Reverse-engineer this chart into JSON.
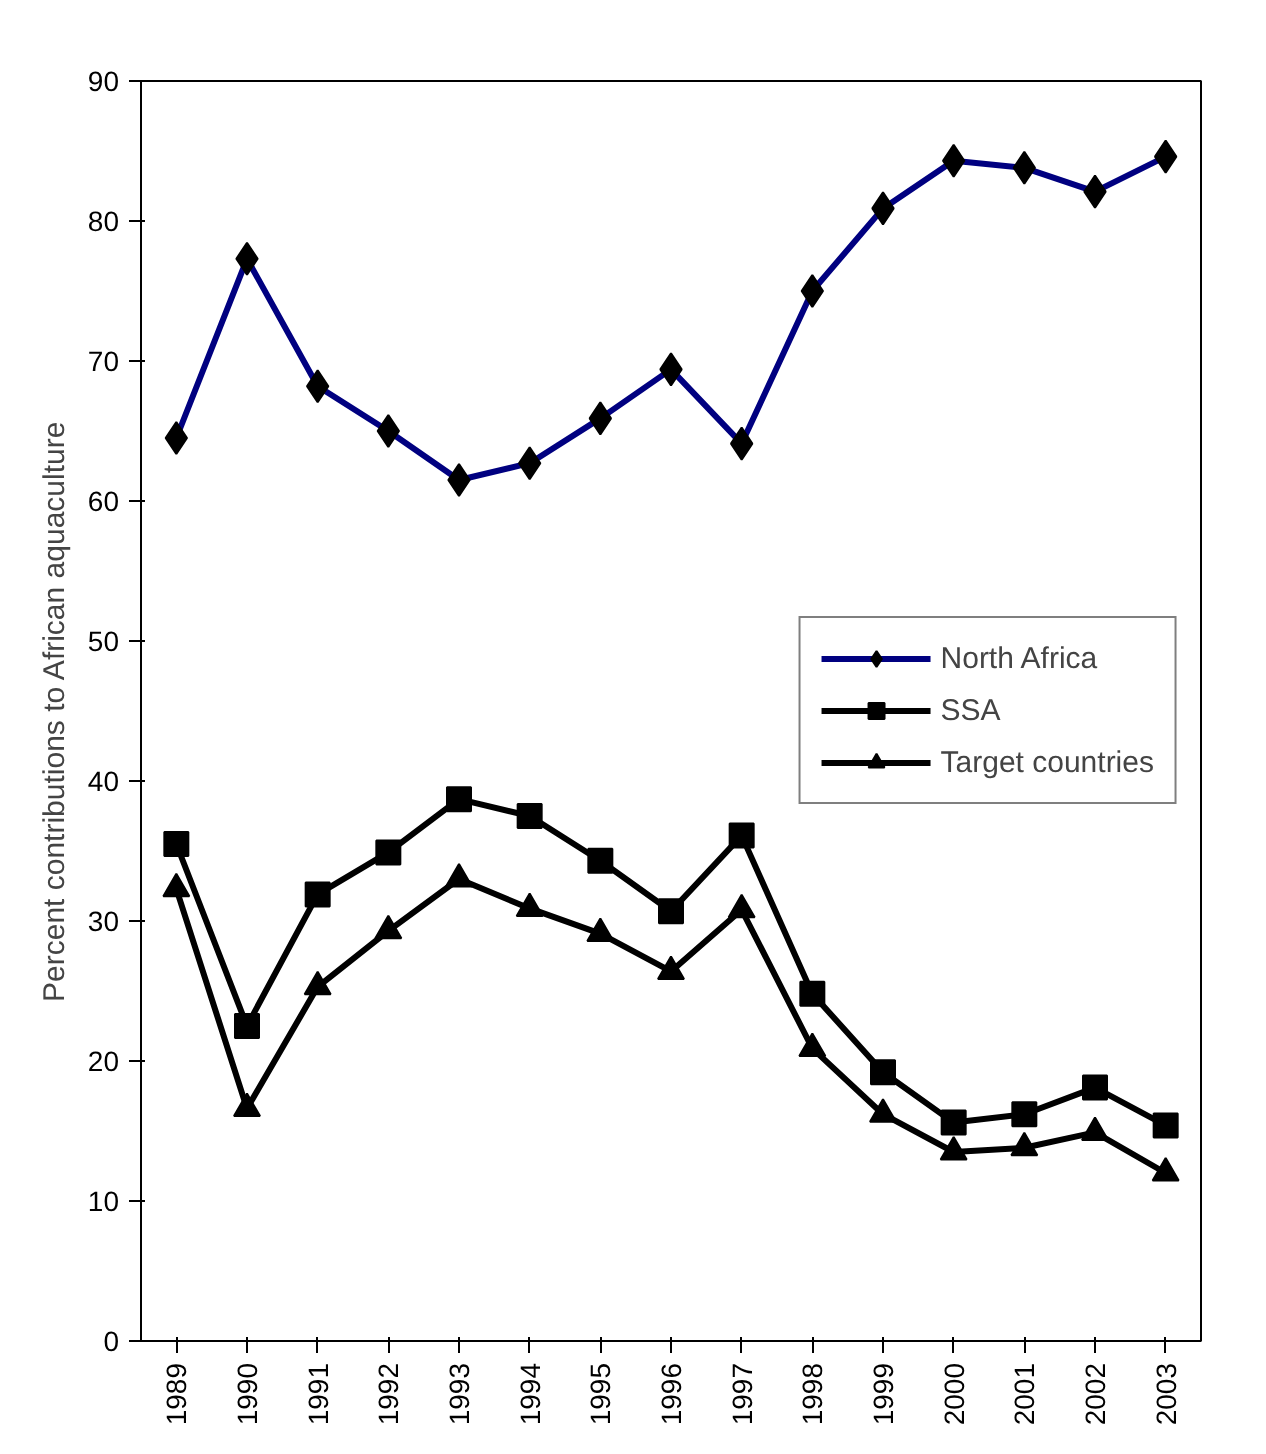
{
  "chart_data": {
    "type": "line",
    "ylabel": "Percent contributions to African aquaculture",
    "categories": [
      "1989",
      "1990",
      "1991",
      "1992",
      "1993",
      "1994",
      "1995",
      "1996",
      "1997",
      "1998",
      "1999",
      "2000",
      "2001",
      "2002",
      "2003"
    ],
    "series": [
      {
        "name": "North Africa",
        "color": "#000080",
        "marker": "diamond",
        "values": [
          64.5,
          77.3,
          68.2,
          65,
          61.5,
          62.7,
          65.9,
          69.4,
          64.1,
          75,
          80.9,
          84.3,
          83.8,
          82.1,
          84.6
        ]
      },
      {
        "name": "SSA",
        "color": "#000000",
        "marker": "square",
        "values": [
          35.5,
          22.5,
          31.9,
          34.9,
          38.7,
          37.5,
          34.3,
          30.7,
          36.1,
          24.8,
          19.2,
          15.6,
          16.2,
          18.1,
          15.4
        ]
      },
      {
        "name": "Target countries",
        "color": "#000000",
        "marker": "triangle",
        "values": [
          32.3,
          16.6,
          25.3,
          29.3,
          33,
          30.9,
          29.1,
          26.4,
          30.8,
          20.9,
          16.2,
          13.5,
          13.8,
          14.9,
          12
        ]
      }
    ],
    "ylim": [
      0,
      90
    ],
    "yticks": [
      0,
      10,
      20,
      30,
      40,
      50,
      60,
      70,
      80,
      90
    ],
    "grid": false,
    "legend": "right"
  }
}
